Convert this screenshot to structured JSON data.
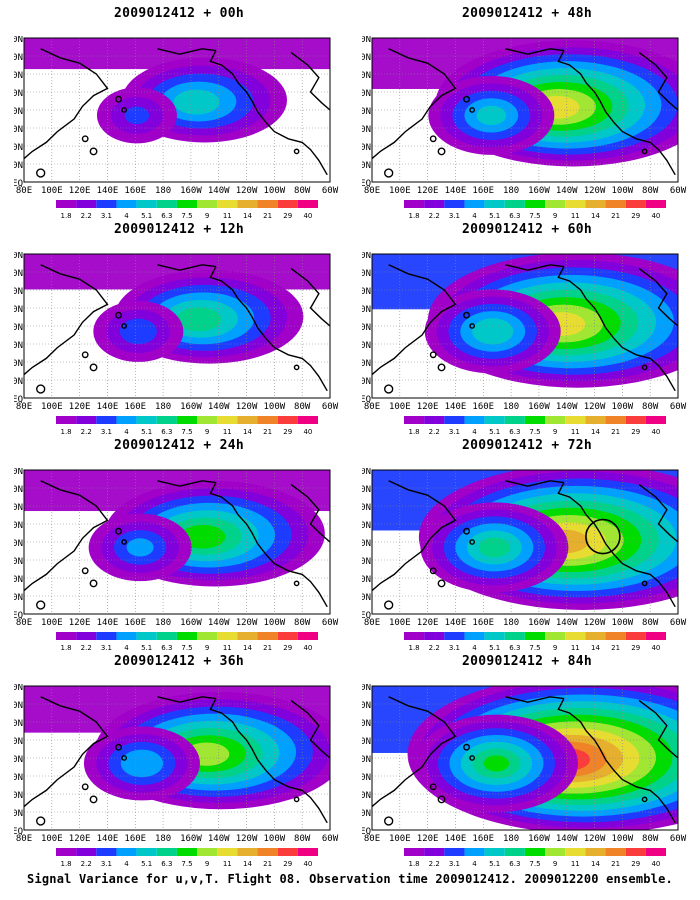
{
  "panels": [
    {
      "title": "2009012412 + 00h",
      "lead": "00h",
      "intensity": 0.12
    },
    {
      "title": "2009012412 + 12h",
      "lead": "12h",
      "intensity": 0.22
    },
    {
      "title": "2009012412 + 24h",
      "lead": "24h",
      "intensity": 0.35
    },
    {
      "title": "2009012412 + 36h",
      "lead": "36h",
      "intensity": 0.48
    },
    {
      "title": "2009012412 + 48h",
      "lead": "48h",
      "intensity": 0.58
    },
    {
      "title": "2009012412 + 60h",
      "lead": "60h",
      "intensity": 0.68
    },
    {
      "title": "2009012412 + 72h",
      "lead": "72h",
      "intensity": 0.8,
      "circle_marker": true
    },
    {
      "title": "2009012412 + 84h",
      "lead": "84h",
      "intensity": 0.95
    }
  ],
  "lon_labels": [
    "80E",
    "100E",
    "120E",
    "140E",
    "160E",
    "180",
    "160W",
    "140W",
    "120W",
    "100W",
    "80W",
    "60W"
  ],
  "lat_labels": [
    "80N",
    "70N",
    "60N",
    "50N",
    "40N",
    "30N",
    "20N",
    "10N",
    "EQ"
  ],
  "colorbar": {
    "labels": [
      "1.8",
      "2.2",
      "3.1",
      "4",
      "5.1",
      "6.3",
      "7.5",
      "9",
      "11",
      "14",
      "21",
      "29",
      "40"
    ],
    "colors": [
      "#a000c8",
      "#8200dc",
      "#1e3cff",
      "#00a0ff",
      "#00c8c8",
      "#00d28c",
      "#00dc00",
      "#a0e632",
      "#e6dc32",
      "#e6af2d",
      "#f08228",
      "#fa3c3c",
      "#f00082"
    ]
  },
  "footer": "Signal Variance for u,v,T. Flight 08. Observation time 2009012412. 2009012200 ensemble."
}
